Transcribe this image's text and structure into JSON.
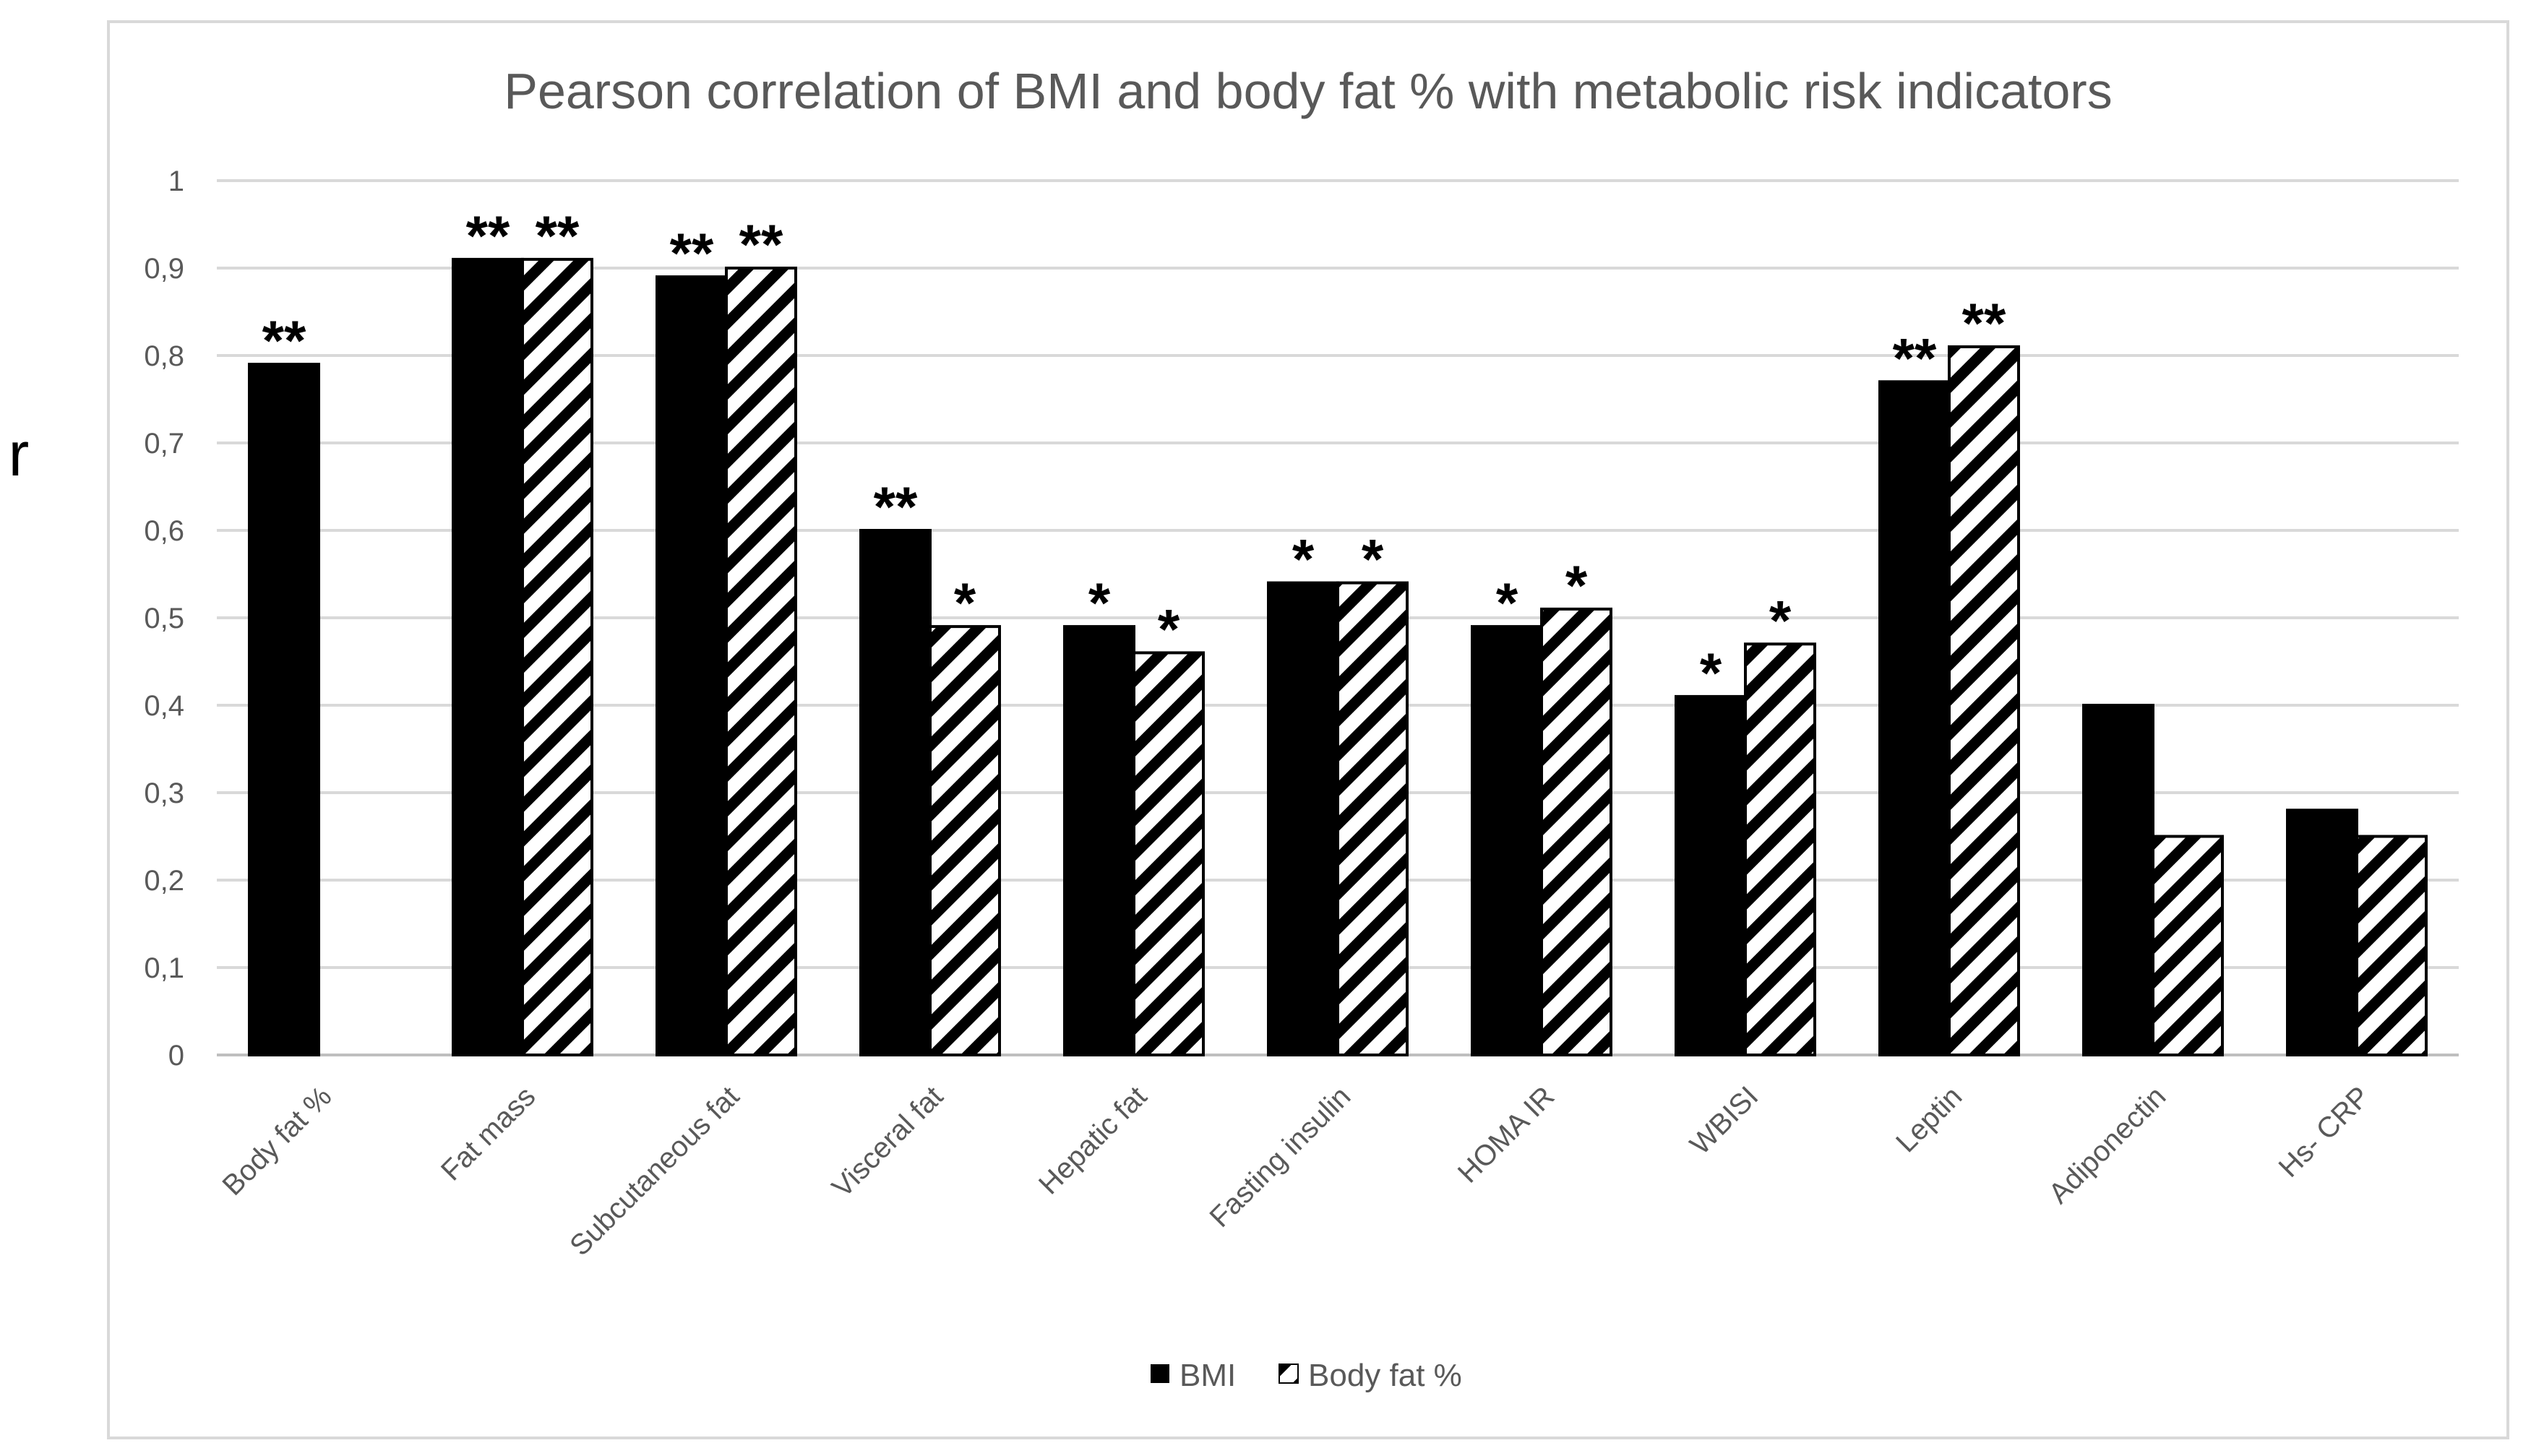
{
  "chart_data": {
    "type": "bar",
    "title": "Pearson correlation of BMI and body fat % with metabolic risk indicators",
    "xlabel": "",
    "ylabel": "r",
    "ylim": [
      0,
      1
    ],
    "yticks": [
      0,
      0.1,
      0.2,
      0.3,
      0.4,
      0.5,
      0.6,
      0.7,
      0.8,
      0.9,
      1
    ],
    "ytick_labels": [
      "0",
      "0,1",
      "0,2",
      "0,3",
      "0,4",
      "0,5",
      "0,6",
      "0,7",
      "0,8",
      "0,9",
      "1"
    ],
    "grid": true,
    "legend_position": "bottom-center",
    "categories": [
      "Body fat %",
      "Fat mass",
      "Subcutaneous fat",
      "Visceral fat",
      "Hepatic fat",
      "Fasting insulin",
      "HOMA IR",
      "WBISI",
      "Leptin",
      "Adiponectin",
      "Hs- CRP"
    ],
    "series": [
      {
        "name": "BMI",
        "pattern": "solid",
        "color": "#000000",
        "values": [
          0.79,
          0.91,
          0.89,
          0.6,
          0.49,
          0.54,
          0.49,
          0.41,
          0.77,
          0.4,
          0.28
        ],
        "significance": [
          "**",
          "**",
          "**",
          "**",
          "*",
          "*",
          "*",
          "*",
          "**",
          "",
          ""
        ]
      },
      {
        "name": "Body fat %",
        "pattern": "diagonal-stripes",
        "color": "#000000",
        "values": [
          null,
          0.91,
          0.9,
          0.49,
          0.46,
          0.54,
          0.51,
          0.47,
          0.81,
          0.25,
          0.25
        ],
        "significance": [
          "",
          "**",
          "**",
          "*",
          "*",
          "*",
          "*",
          "*",
          "**",
          "",
          ""
        ]
      }
    ]
  },
  "colors": {
    "grid": "#d9d9d9",
    "axis": "#bfbfbf",
    "text": "#595959",
    "border": "#d9d9d9"
  }
}
